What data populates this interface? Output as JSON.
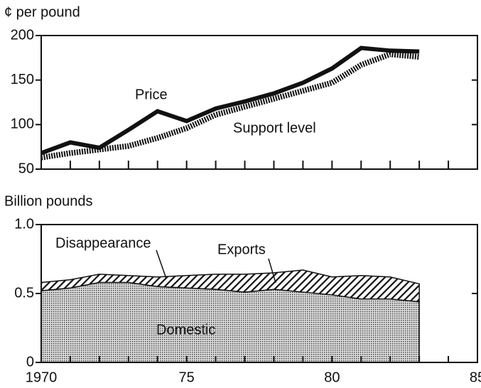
{
  "chart_data": [
    {
      "type": "line",
      "y_label": "¢ per pound",
      "x": [
        1970,
        1971,
        1972,
        1973,
        1974,
        1975,
        1976,
        1977,
        1978,
        1979,
        1980,
        1981,
        1982,
        1983
      ],
      "series": [
        {
          "name": "Price",
          "color": "#111111",
          "values": [
            68,
            80,
            74,
            94,
            115,
            104,
            118,
            126,
            135,
            147,
            163,
            186,
            183,
            182
          ]
        },
        {
          "name": "Support level",
          "color": "#111111",
          "values": [
            63,
            68,
            72,
            76,
            85,
            96,
            111,
            120,
            129,
            138,
            147,
            167,
            179,
            176
          ]
        }
      ],
      "xlim": [
        1970,
        1985
      ],
      "ylim": [
        50,
        200
      ],
      "yticks": [
        50,
        100,
        150,
        200
      ]
    },
    {
      "type": "stacked-area",
      "y_label": "Billion pounds",
      "x": [
        1970,
        1971,
        1972,
        1973,
        1974,
        1975,
        1976,
        1977,
        1978,
        1979,
        1980,
        1981,
        1982,
        1983
      ],
      "series": [
        {
          "name": "Domestic",
          "color": "#b8b8b8",
          "values": [
            0.52,
            0.54,
            0.58,
            0.58,
            0.55,
            0.54,
            0.53,
            0.51,
            0.53,
            0.51,
            0.49,
            0.46,
            0.46,
            0.44
          ]
        },
        {
          "name": "Exports",
          "color": "#111111",
          "values": [
            0.06,
            0.06,
            0.06,
            0.05,
            0.07,
            0.09,
            0.11,
            0.13,
            0.12,
            0.16,
            0.13,
            0.17,
            0.16,
            0.13
          ]
        }
      ],
      "annotations": [
        "Disappearance"
      ],
      "xlim": [
        1970,
        1985
      ],
      "ylim": [
        0,
        1
      ],
      "yticks": [
        0,
        0.5,
        {
          "value": 1,
          "label": "1.0"
        }
      ],
      "xticks": [
        1970,
        {
          "value": 1975,
          "label": "75"
        },
        {
          "value": 1980,
          "label": "80"
        },
        {
          "value": 1985,
          "label": "85"
        }
      ]
    }
  ]
}
